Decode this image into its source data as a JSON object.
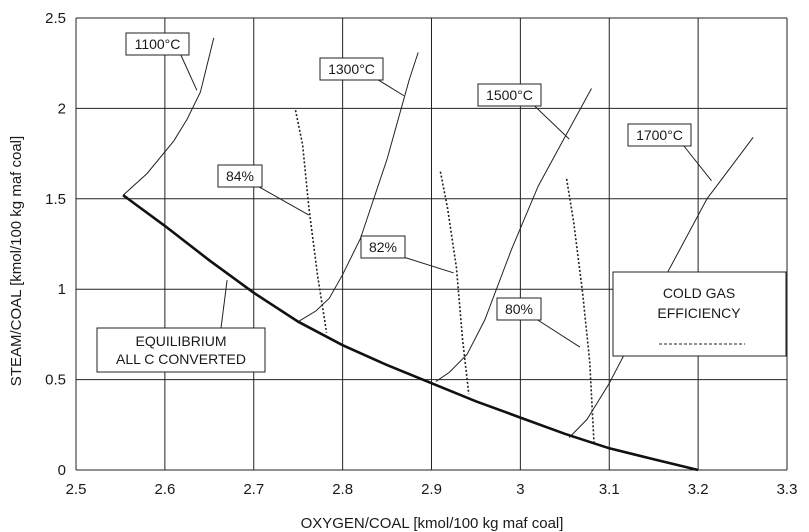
{
  "chart_data": {
    "type": "line",
    "title": "",
    "xlabel": "OXYGEN/COAL [kmol/100 kg maf coal]",
    "ylabel": "STEAM/COAL [kmol/100 kg maf coal]",
    "xlim": [
      2.5,
      3.3
    ],
    "ylim": [
      0,
      2.5
    ],
    "x_ticks": [
      2.5,
      2.6,
      2.7,
      2.8,
      2.9,
      3.0,
      3.1,
      3.2,
      3.3
    ],
    "x_tick_labels": [
      "2.5",
      "2.6",
      "2.7",
      "2.8",
      "2.9",
      "3",
      "3.1",
      "3.2",
      "3.3"
    ],
    "y_ticks": [
      0,
      0.5,
      1,
      1.5,
      2,
      2.5
    ],
    "y_tick_labels": [
      "0",
      "0.5",
      "1",
      "1.5",
      "2",
      "2.5"
    ],
    "grid": true,
    "equilibrium": {
      "label_line1": "EQUILIBRIUM",
      "label_line2": "ALL C CONVERTED",
      "points": [
        [
          2.553,
          1.52
        ],
        [
          2.6,
          1.35
        ],
        [
          2.65,
          1.16
        ],
        [
          2.7,
          0.98
        ],
        [
          2.75,
          0.82
        ],
        [
          2.8,
          0.69
        ],
        [
          2.85,
          0.58
        ],
        [
          2.9,
          0.48
        ],
        [
          2.95,
          0.38
        ],
        [
          3.0,
          0.29
        ],
        [
          3.05,
          0.2
        ],
        [
          3.1,
          0.12
        ],
        [
          3.15,
          0.06
        ],
        [
          3.2,
          0.0
        ]
      ],
      "label_anchor": [
        2.67,
        1.05
      ]
    },
    "temperature_series": [
      {
        "name": "1100°C",
        "points": [
          [
            2.553,
            1.52
          ],
          [
            2.58,
            1.64
          ],
          [
            2.61,
            1.82
          ],
          [
            2.625,
            1.94
          ],
          [
            2.64,
            2.09
          ],
          [
            2.655,
            2.39
          ]
        ],
        "label_anchor": [
          2.636,
          2.1
        ]
      },
      {
        "name": "1300°C",
        "points": [
          [
            2.75,
            0.82
          ],
          [
            2.77,
            0.88
          ],
          [
            2.785,
            0.95
          ],
          [
            2.8,
            1.08
          ],
          [
            2.82,
            1.28
          ],
          [
            2.85,
            1.72
          ],
          [
            2.875,
            2.16
          ],
          [
            2.885,
            2.31
          ]
        ],
        "label_anchor": [
          2.869,
          2.07
        ]
      },
      {
        "name": "1500°C",
        "points": [
          [
            2.905,
            0.49
          ],
          [
            2.92,
            0.54
          ],
          [
            2.94,
            0.64
          ],
          [
            2.96,
            0.83
          ],
          [
            2.99,
            1.22
          ],
          [
            3.02,
            1.57
          ],
          [
            3.05,
            1.84
          ],
          [
            3.08,
            2.11
          ]
        ],
        "label_anchor": [
          3.055,
          1.83
        ]
      },
      {
        "name": "1700°C",
        "points": [
          [
            3.055,
            0.18
          ],
          [
            3.075,
            0.28
          ],
          [
            3.1,
            0.48
          ],
          [
            3.15,
            0.95
          ],
          [
            3.21,
            1.5
          ],
          [
            3.262,
            1.84
          ]
        ],
        "label_anchor": [
          3.215,
          1.6
        ]
      }
    ],
    "efficiency_series": [
      {
        "name": "84%",
        "points": [
          [
            2.747,
            1.99
          ],
          [
            2.755,
            1.8
          ],
          [
            2.762,
            1.45
          ],
          [
            2.772,
            1.07
          ],
          [
            2.782,
            0.76
          ]
        ],
        "label_anchor": [
          2.762,
          1.41
        ]
      },
      {
        "name": "82%",
        "points": [
          [
            2.91,
            1.65
          ],
          [
            2.918,
            1.45
          ],
          [
            2.928,
            1.12
          ],
          [
            2.935,
            0.72
          ],
          [
            2.942,
            0.42
          ]
        ],
        "label_anchor": [
          2.925,
          1.09
        ]
      },
      {
        "name": "80%",
        "points": [
          [
            3.052,
            1.61
          ],
          [
            3.06,
            1.37
          ],
          [
            3.07,
            0.98
          ],
          [
            3.078,
            0.6
          ],
          [
            3.083,
            0.14
          ]
        ],
        "label_anchor": [
          3.067,
          0.68
        ]
      }
    ],
    "legend": {
      "line1": "COLD GAS",
      "line2": "EFFICIENCY",
      "position": "right-middle"
    }
  }
}
